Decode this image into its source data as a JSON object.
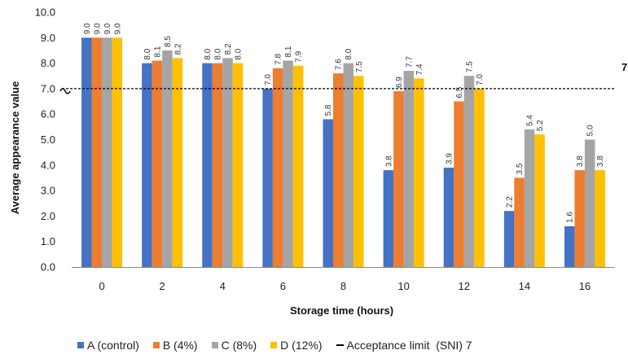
{
  "chart_data": {
    "type": "bar",
    "categories": [
      "0",
      "2",
      "4",
      "6",
      "8",
      "10",
      "12",
      "14",
      "16"
    ],
    "series": [
      {
        "name": "A (control)",
        "color": "#4472C4",
        "values": [
          9.0,
          8.0,
          8.0,
          7.0,
          5.8,
          3.8,
          3.9,
          2.2,
          1.6
        ]
      },
      {
        "name": "B (4%)",
        "color": "#ED7D31",
        "values": [
          9.0,
          8.1,
          8.0,
          7.8,
          7.6,
          6.9,
          6.5,
          3.5,
          3.8
        ]
      },
      {
        "name": "C (8%)",
        "color": "#A5A5A5",
        "values": [
          9.0,
          8.5,
          8.2,
          8.1,
          8.0,
          7.7,
          7.5,
          5.4,
          5.0
        ]
      },
      {
        "name": "D (12%)",
        "color": "#FFC000",
        "values": [
          9.0,
          8.2,
          8.0,
          7.9,
          7.5,
          7.4,
          7.0,
          5.2,
          3.8
        ]
      }
    ],
    "data_labels": [
      [
        "9.0",
        "8.0",
        "8.0",
        "7.0",
        "5.8",
        "3.8",
        "3.9",
        "2.2",
        "1.6"
      ],
      [
        "9.0",
        "8.1",
        "8.0",
        "7.8",
        "7.6",
        "6.9",
        "6.5",
        "3.5",
        "3.8"
      ],
      [
        "9.0",
        "8.5",
        "8.2",
        "8.1",
        "8.0",
        "7.7",
        "7.5",
        "5.4",
        "5.0"
      ],
      [
        "9.0",
        "8.2",
        "8.0",
        "7.9",
        "7.5",
        "7.4",
        "7.0",
        "5.2",
        "3.8"
      ]
    ],
    "reference_line": {
      "value": 7,
      "label": "7",
      "legend": "Acceptance limit  (SNI) 7",
      "style": "dashed",
      "color": "#000000"
    },
    "ylim": [
      0,
      10
    ],
    "yticks": [
      "0.0",
      "1.0",
      "2.0",
      "3.0",
      "4.0",
      "5.0",
      "6.0",
      "7.0",
      "8.0",
      "9.0",
      "10.0"
    ],
    "xlabel": "Storage time (hours)",
    "ylabel": "Average appearance value",
    "title": "",
    "grid": false,
    "legend_position": "bottom"
  }
}
